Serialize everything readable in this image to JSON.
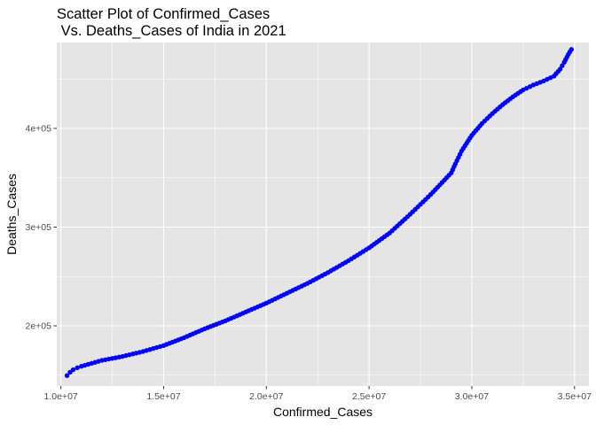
{
  "chart_data": {
    "type": "scatter",
    "title_lines": [
      "Scatter Plot of Confirmed_Cases",
      " Vs. Deaths_Cases of India in 2021"
    ],
    "xlabel": "Confirmed_Cases",
    "ylabel": "Deaths_Cases",
    "xlim": [
      9800000,
      35700000
    ],
    "ylim": [
      139000,
      487000
    ],
    "x_ticks": [
      10000000,
      15000000,
      20000000,
      25000000,
      30000000,
      35000000
    ],
    "x_tick_labels": [
      "1.0e+07",
      "1.5e+07",
      "2.0e+07",
      "2.5e+07",
      "3.0e+07",
      "3.5e+07"
    ],
    "x_minor_ticks": [
      12500000,
      17500000,
      22500000,
      27500000,
      32500000
    ],
    "y_ticks": [
      200000,
      300000,
      400000
    ],
    "y_tick_labels": [
      "2e+05",
      "3e+05",
      "4e+05"
    ],
    "y_minor_ticks": [
      150000,
      250000,
      350000,
      450000
    ],
    "grid": true,
    "point_color": "#0000ff",
    "panel_color": "#e5e5e5",
    "grid_color": "#ffffff",
    "curve_keypoints": [
      [
        10300000,
        149600
      ],
      [
        10450000,
        153000
      ],
      [
        10600000,
        155500
      ],
      [
        10800000,
        157500
      ],
      [
        11000000,
        159000
      ],
      [
        11500000,
        162000
      ],
      [
        12000000,
        165000
      ],
      [
        13000000,
        169000
      ],
      [
        14000000,
        174000
      ],
      [
        15000000,
        180000
      ],
      [
        16000000,
        188000
      ],
      [
        17000000,
        197000
      ],
      [
        18000000,
        205000
      ],
      [
        19000000,
        214000
      ],
      [
        20000000,
        223000
      ],
      [
        21000000,
        233000
      ],
      [
        22000000,
        243000
      ],
      [
        23000000,
        254000
      ],
      [
        24000000,
        266000
      ],
      [
        25000000,
        279000
      ],
      [
        26000000,
        294000
      ],
      [
        27000000,
        313000
      ],
      [
        28000000,
        333000
      ],
      [
        29000000,
        355000
      ],
      [
        29200000,
        364000
      ],
      [
        29500000,
        377000
      ],
      [
        30000000,
        393000
      ],
      [
        30500000,
        405000
      ],
      [
        31000000,
        415000
      ],
      [
        31500000,
        424000
      ],
      [
        32000000,
        432000
      ],
      [
        32500000,
        439000
      ],
      [
        33000000,
        444000
      ],
      [
        33500000,
        448000
      ],
      [
        34000000,
        453000
      ],
      [
        34300000,
        460000
      ],
      [
        34500000,
        467000
      ],
      [
        34700000,
        475000
      ],
      [
        34850000,
        480000
      ]
    ]
  }
}
